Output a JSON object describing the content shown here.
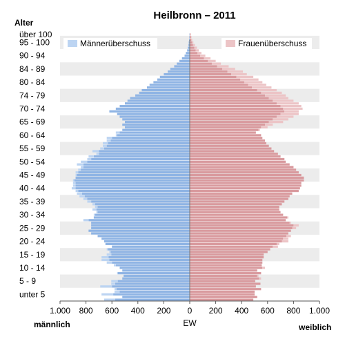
{
  "chart_data": {
    "type": "bar",
    "orientation": "horizontal",
    "title": "Heilbronn – 2011",
    "y_axis_title": "Alter",
    "x_axis_title": "EW",
    "left_label": "männlich",
    "right_label": "weiblich",
    "legend": {
      "placement": "top",
      "male_surplus": "Männerüberschuss",
      "female_surplus": "Frauenüberschuss"
    },
    "x_ticks": [
      "1.000",
      "800",
      "600",
      "400",
      "200",
      "0",
      "200",
      "400",
      "600",
      "800",
      "1.000"
    ],
    "xlim": [
      -1000,
      1000
    ],
    "age_range": [
      0,
      101
    ],
    "age_labels": [
      {
        "label": "unter 5",
        "age": 2
      },
      {
        "label": "5 - 9",
        "age": 7
      },
      {
        "label": "10 - 14",
        "age": 12
      },
      {
        "label": "15 - 19",
        "age": 17
      },
      {
        "label": "20 - 24",
        "age": 22
      },
      {
        "label": "25 - 29",
        "age": 27
      },
      {
        "label": "30 - 34",
        "age": 32
      },
      {
        "label": "35 - 39",
        "age": 37
      },
      {
        "label": "40 - 44",
        "age": 42
      },
      {
        "label": "45 - 49",
        "age": 47
      },
      {
        "label": "50 - 54",
        "age": 52
      },
      {
        "label": "55 - 59",
        "age": 57
      },
      {
        "label": "60 - 64",
        "age": 62
      },
      {
        "label": "65 - 69",
        "age": 67
      },
      {
        "label": "70 - 74",
        "age": 72
      },
      {
        "label": "74 - 79",
        "age": 77
      },
      {
        "label": "80 - 84",
        "age": 82
      },
      {
        "label": "84 - 89",
        "age": 87
      },
      {
        "label": "90 - 94",
        "age": 92
      },
      {
        "label": "95 - 100",
        "age": 97
      },
      {
        "label": "über 100",
        "age": 100
      }
    ],
    "series": [
      {
        "name": "männlich",
        "key": "male",
        "values": [
          575,
          520,
          590,
          540,
          565,
          600,
          575,
          555,
          520,
          510,
          555,
          520,
          540,
          570,
          600,
          620,
          625,
          605,
          610,
          630,
          600,
          650,
          660,
          680,
          710,
          760,
          780,
          760,
          760,
          760,
          780,
          740,
          730,
          710,
          720,
          710,
          730,
          760,
          790,
          810,
          830,
          860,
          880,
          880,
          880,
          890,
          880,
          870,
          860,
          840,
          820,
          820,
          790,
          760,
          740,
          700,
          700,
          660,
          640,
          630,
          610,
          600,
          560,
          540,
          520,
          500,
          520,
          500,
          520,
          540,
          560,
          620,
          570,
          540,
          500,
          480,
          460,
          420,
          390,
          370,
          330,
          310,
          280,
          250,
          230,
          200,
          170,
          150,
          120,
          100,
          80,
          60,
          40,
          30,
          20,
          15,
          10,
          8,
          5,
          3,
          2
        ]
      },
      {
        "name": "weiblich",
        "key": "female",
        "values": [
          490,
          520,
          500,
          500,
          550,
          510,
          545,
          505,
          535,
          520,
          550,
          520,
          560,
          555,
          560,
          560,
          570,
          570,
          600,
          620,
          640,
          670,
          710,
          720,
          745,
          760,
          780,
          790,
          800,
          770,
          740,
          750,
          720,
          700,
          690,
          690,
          710,
          730,
          760,
          770,
          790,
          840,
          850,
          860,
          860,
          880,
          880,
          860,
          840,
          820,
          800,
          770,
          740,
          730,
          700,
          680,
          650,
          630,
          610,
          590,
          580,
          560,
          550,
          510,
          530,
          550,
          580,
          610,
          640,
          670,
          700,
          730,
          720,
          700,
          670,
          640,
          610,
          580,
          550,
          520,
          480,
          450,
          420,
          390,
          360,
          320,
          290,
          250,
          210,
          170,
          140,
          110,
          80,
          60,
          45,
          35,
          25,
          18,
          12,
          8,
          5
        ]
      },
      {
        "name": "Männerüberschuss",
        "key": "male_surplus",
        "values": [
          85,
          0,
          90,
          40,
          15,
          90,
          30,
          50,
          0,
          0,
          5,
          0,
          0,
          15,
          40,
          60,
          55,
          35,
          10,
          10,
          0,
          0,
          0,
          0,
          0,
          0,
          0,
          0,
          0,
          0,
          40,
          0,
          10,
          10,
          30,
          20,
          20,
          30,
          30,
          40,
          40,
          20,
          30,
          20,
          20,
          10,
          0,
          10,
          20,
          20,
          20,
          50,
          50,
          30,
          40,
          20,
          50,
          30,
          30,
          40,
          30,
          40,
          10,
          30,
          0,
          0,
          0,
          0,
          0,
          0,
          0,
          0,
          0,
          0,
          0,
          0,
          0,
          0,
          0,
          0,
          0,
          0,
          0,
          0,
          0,
          0,
          0,
          0,
          0,
          0,
          0,
          0,
          0,
          0,
          0,
          0,
          0,
          0,
          0,
          0,
          0
        ]
      },
      {
        "name": "Frauenüberschuss",
        "key": "female_surplus",
        "values": [
          0,
          0,
          0,
          0,
          0,
          0,
          0,
          0,
          15,
          10,
          0,
          0,
          20,
          0,
          0,
          0,
          0,
          0,
          0,
          0,
          40,
          20,
          50,
          40,
          35,
          0,
          0,
          30,
          40,
          10,
          0,
          10,
          0,
          0,
          0,
          0,
          0,
          0,
          0,
          0,
          0,
          0,
          0,
          0,
          0,
          0,
          0,
          0,
          0,
          0,
          0,
          0,
          0,
          0,
          0,
          0,
          0,
          0,
          0,
          0,
          0,
          0,
          0,
          0,
          10,
          50,
          60,
          110,
          120,
          130,
          140,
          110,
          150,
          160,
          170,
          160,
          150,
          160,
          160,
          150,
          150,
          140,
          140,
          140,
          130,
          120,
          120,
          100,
          90,
          70,
          60,
          50,
          40,
          30,
          25,
          20,
          15,
          10,
          7,
          5,
          3
        ]
      }
    ],
    "colors": {
      "male": "#8fb4e4",
      "female": "#d99a9e",
      "male_surplus": "#bcd4f2",
      "female_surplus": "#ecc4c6",
      "band": "#ececec"
    }
  }
}
